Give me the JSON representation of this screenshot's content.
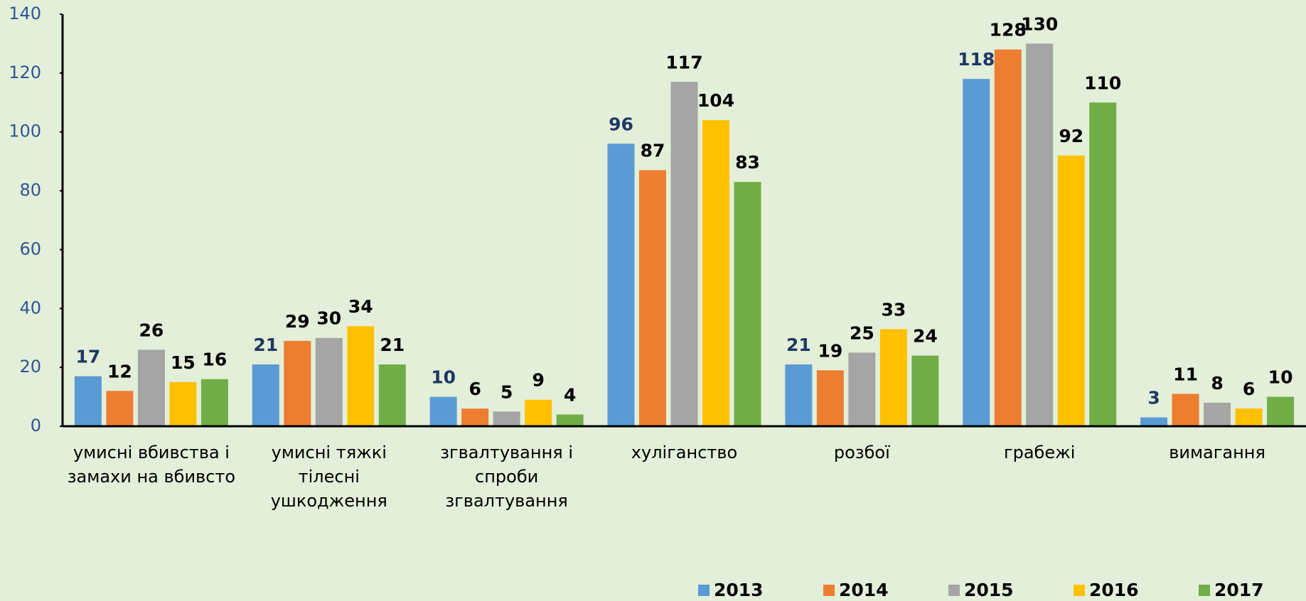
{
  "chart_data": {
    "type": "bar",
    "categories": [
      "умисні вбивства і замахи на вбивсто",
      "умисні тяжкі тілесні ушкодження",
      "згвалтування і спроби згвалтування",
      "хуліганство",
      "розбої",
      "грабежі",
      "вимагання"
    ],
    "series": [
      {
        "name": "2013",
        "color": "#5b9bd5",
        "values": [
          17,
          21,
          10,
          96,
          21,
          118,
          3
        ]
      },
      {
        "name": "2014",
        "color": "#ed7d31",
        "values": [
          12,
          29,
          6,
          87,
          19,
          128,
          11
        ]
      },
      {
        "name": "2015",
        "color": "#a5a5a5",
        "values": [
          26,
          30,
          5,
          117,
          25,
          130,
          8
        ]
      },
      {
        "name": "2016",
        "color": "#ffc000",
        "values": [
          15,
          34,
          9,
          104,
          33,
          92,
          6
        ]
      },
      {
        "name": "2017",
        "color": "#70ad47",
        "values": [
          16,
          21,
          4,
          83,
          24,
          110,
          10
        ]
      }
    ],
    "ylim": [
      0,
      140
    ],
    "yticks": [
      0,
      20,
      40,
      60,
      80,
      100,
      120,
      140
    ],
    "legend": "bottom"
  }
}
